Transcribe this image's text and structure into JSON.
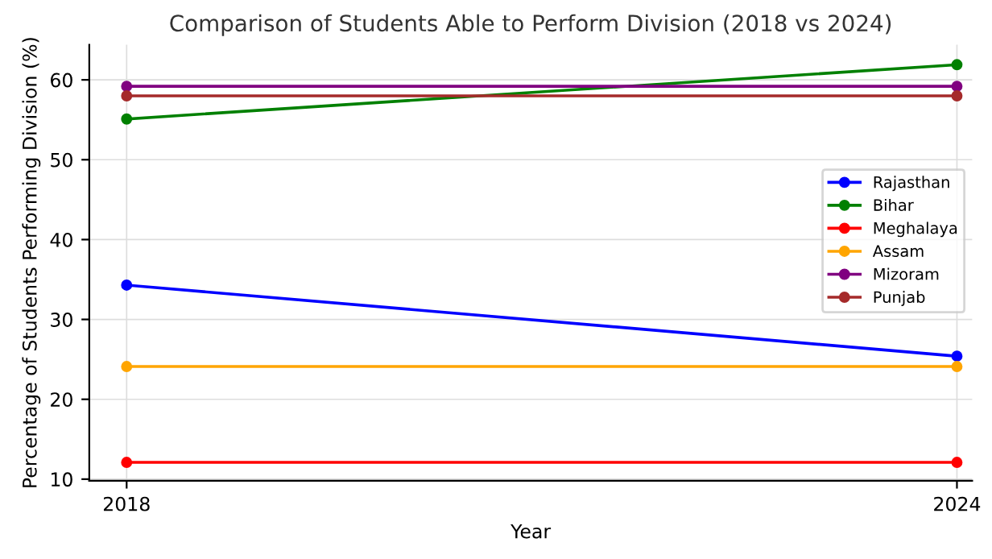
{
  "chart_data": {
    "type": "line",
    "title": "Comparison of Students Able to Perform Division (2018 vs 2024)",
    "xlabel": "Year",
    "ylabel": "Percentage of Students Performing Division (%)",
    "x": [
      2018,
      2024
    ],
    "xlim": [
      2017.73,
      2024.11
    ],
    "xticks": [
      2018,
      2024
    ],
    "series": [
      {
        "name": "Rajasthan",
        "color": "#0000ff",
        "values": [
          34.3,
          25.4
        ]
      },
      {
        "name": "Bihar",
        "color": "#008000",
        "values": [
          55.1,
          61.9
        ]
      },
      {
        "name": "Meghalaya",
        "color": "#ff0000",
        "values": [
          12.1,
          12.1
        ]
      },
      {
        "name": "Assam",
        "color": "#ffa500",
        "values": [
          24.1,
          24.1
        ]
      },
      {
        "name": "Mizoram",
        "color": "#800080",
        "values": [
          59.2,
          59.2
        ]
      },
      {
        "name": "Punjab",
        "color": "#a52a2a",
        "values": [
          58.0,
          58.0
        ]
      }
    ],
    "ylim": [
      9.8,
      64.4
    ],
    "yticks": [
      10,
      20,
      30,
      40,
      50,
      60
    ],
    "grid": true,
    "legend": "right",
    "marker": "circle",
    "line_style": "solid"
  }
}
